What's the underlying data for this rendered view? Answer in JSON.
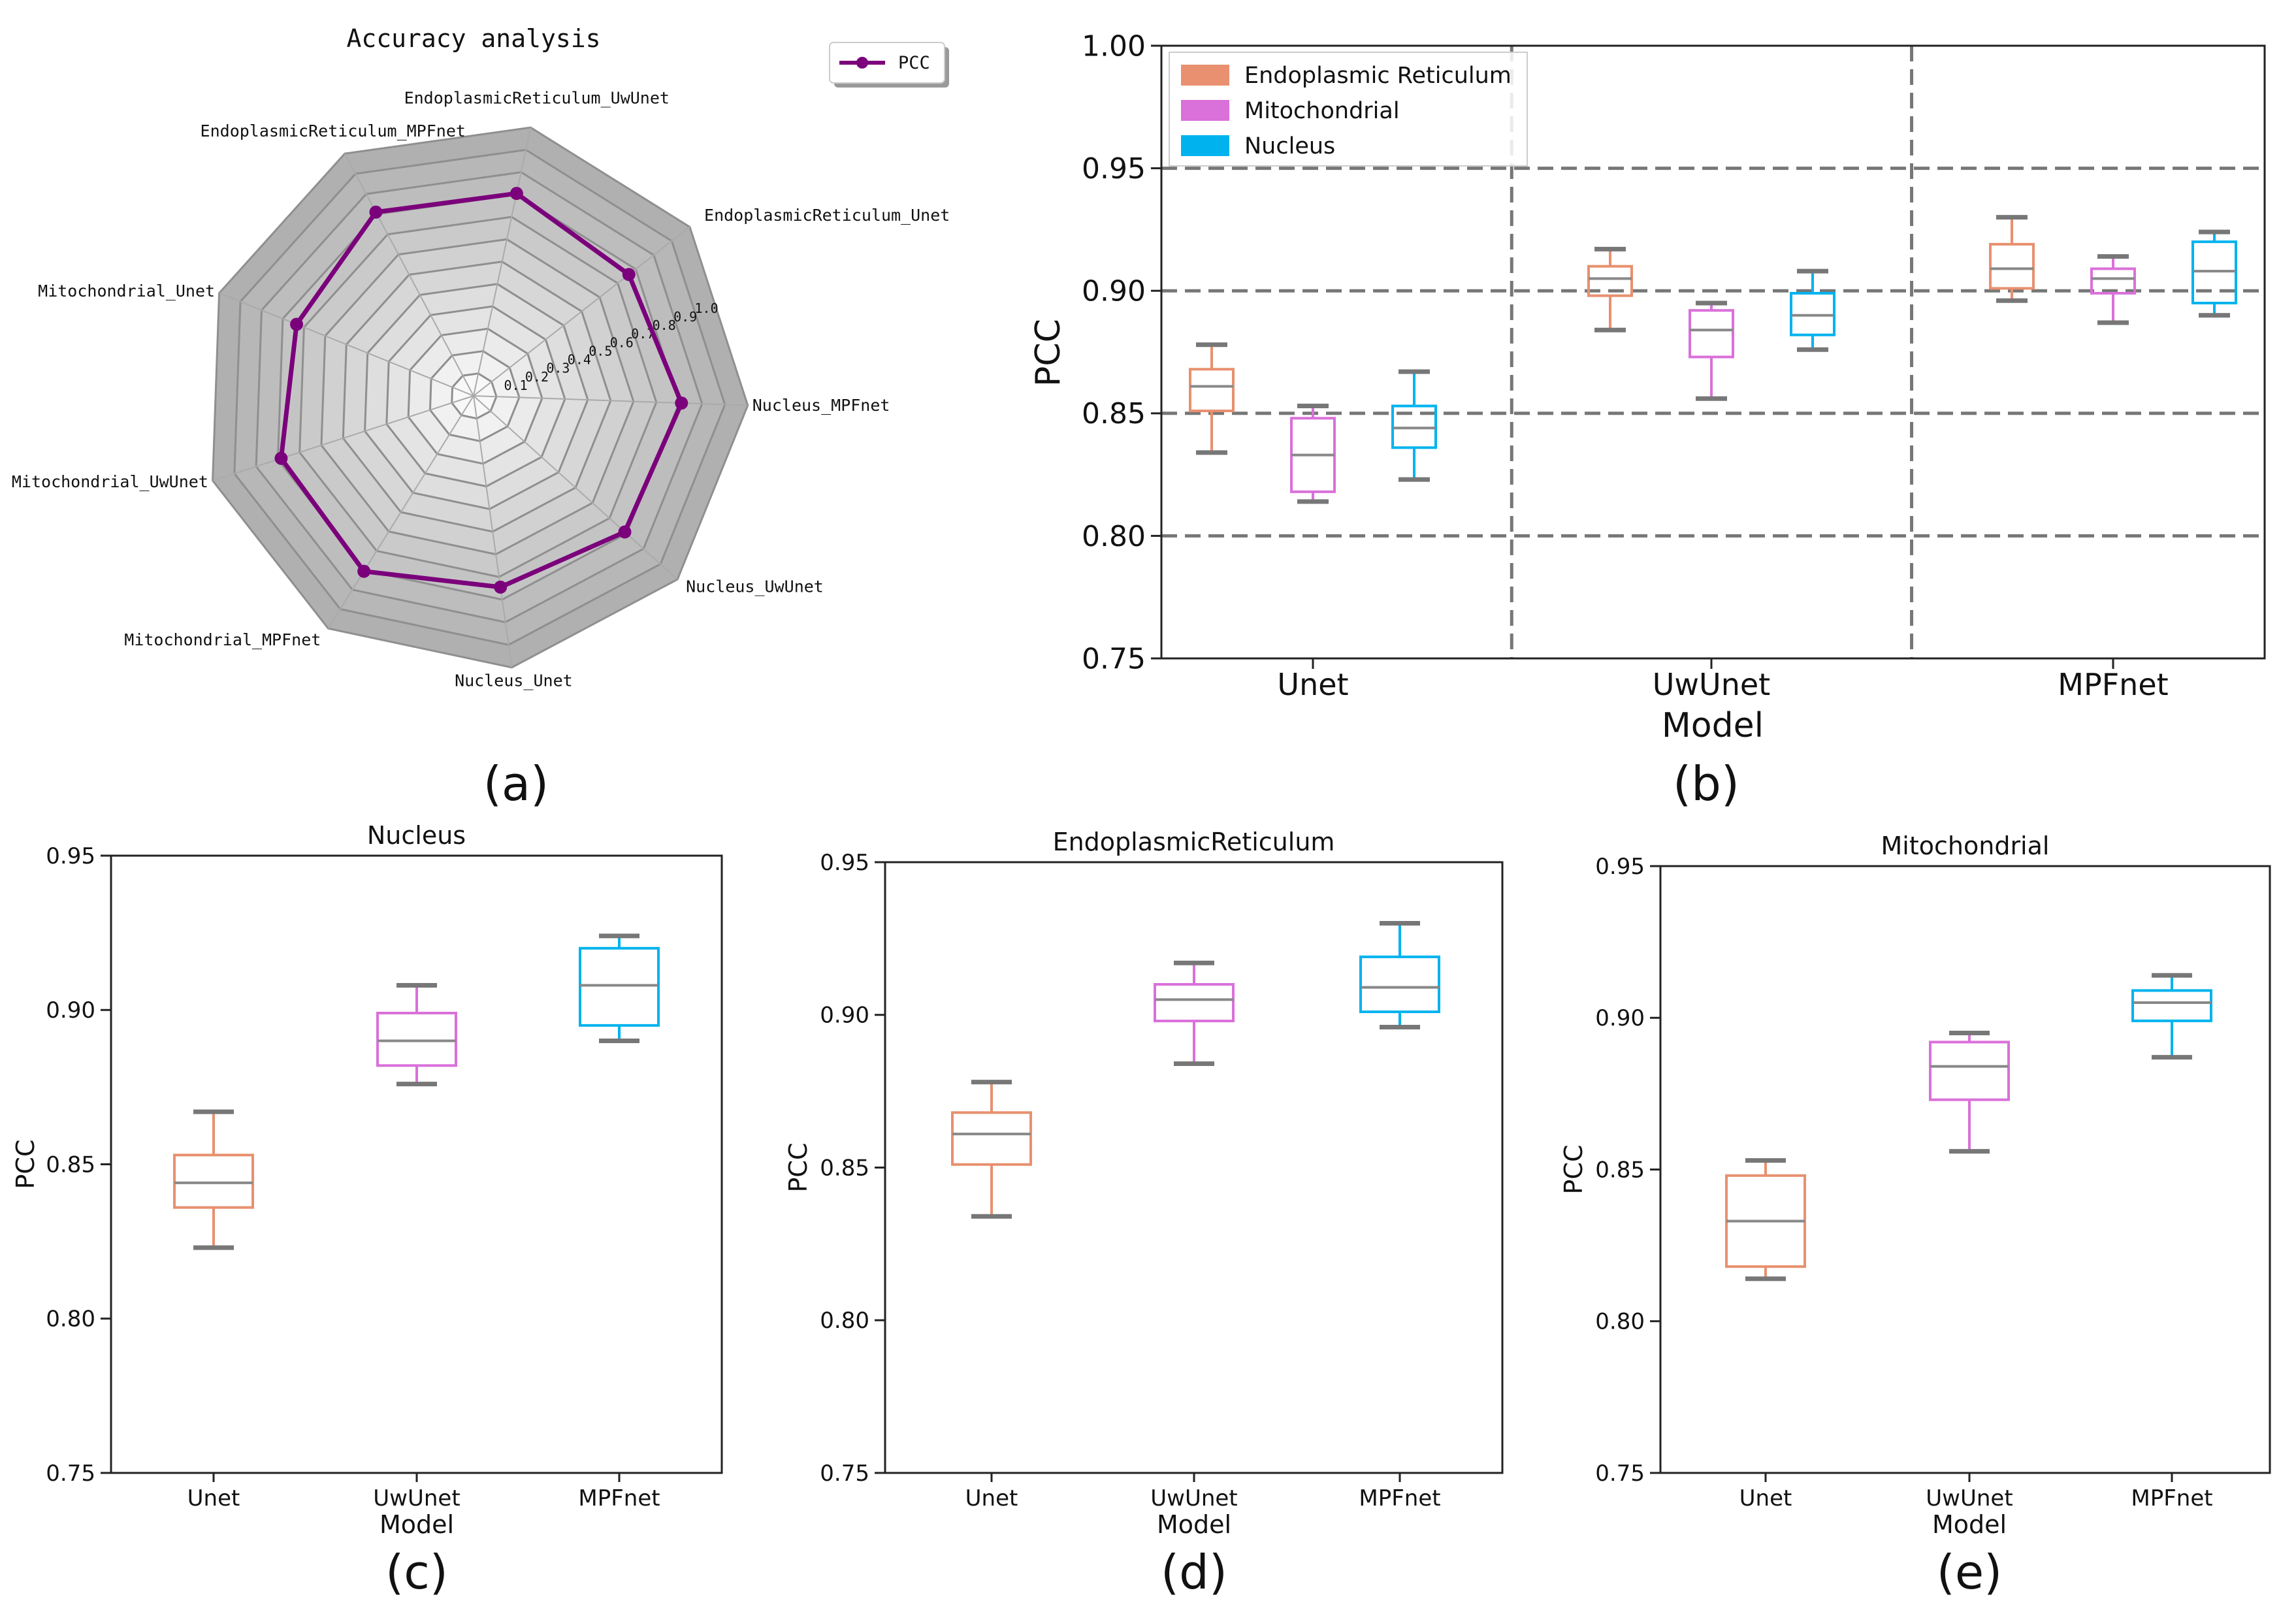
{
  "colors": {
    "er": "#E8906F",
    "mito": "#DA70DA",
    "nuc": "#00B3EE",
    "radar_line": "#7B007B",
    "median": "#888888",
    "cap": "#777777",
    "grid": "#777777"
  },
  "chart_data": [
    {
      "panel": "(a)",
      "type": "radar",
      "title": "Accuracy analysis",
      "legend": [
        "PCC"
      ],
      "legend_position": "top-right",
      "axes": [
        "EndoplasmicReticulum_UwUnet",
        "EndoplasmicReticulum_Unet",
        "Nucleus_MPFnet",
        "Nucleus_UwUnet",
        "Nucleus_Unet",
        "Mitochondrial_MPFnet",
        "Mitochondrial_UwUnet",
        "Mitochondrial_Unet",
        "EndoplasmicReticulum_MPFnet"
      ],
      "values": [
        0.905,
        0.862,
        0.91,
        0.89,
        0.845,
        0.905,
        0.885,
        0.835,
        0.91
      ],
      "rlim": [
        0,
        1.2
      ],
      "radial_ticks": [
        "0.1",
        "0.2",
        "0.3",
        "0.4",
        "0.5",
        "0.6",
        "0.7",
        "0.8",
        "0.9",
        "1.0"
      ]
    },
    {
      "panel": "(b)",
      "type": "box",
      "title": "",
      "xlabel": "Model",
      "ylabel": "PCC",
      "ylim": [
        0.75,
        1.0
      ],
      "yticks": [
        "0.75",
        "0.80",
        "0.85",
        "0.90",
        "0.95",
        "1.00"
      ],
      "categories": [
        "Unet",
        "UwUnet",
        "MPFnet"
      ],
      "legend_position": "top-left",
      "grid": true,
      "series": [
        {
          "name": "Endoplasmic Reticulum",
          "color_key": "er",
          "boxes": [
            {
              "min": 0.834,
              "q1": 0.851,
              "median": 0.861,
              "q3": 0.868,
              "max": 0.878
            },
            {
              "min": 0.884,
              "q1": 0.898,
              "median": 0.905,
              "q3": 0.91,
              "max": 0.917
            },
            {
              "min": 0.896,
              "q1": 0.901,
              "median": 0.909,
              "q3": 0.919,
              "max": 0.93
            }
          ]
        },
        {
          "name": "Mitochondrial",
          "color_key": "mito",
          "boxes": [
            {
              "min": 0.814,
              "q1": 0.818,
              "median": 0.833,
              "q3": 0.848,
              "max": 0.853
            },
            {
              "min": 0.856,
              "q1": 0.873,
              "median": 0.884,
              "q3": 0.892,
              "max": 0.895
            },
            {
              "min": 0.887,
              "q1": 0.899,
              "median": 0.905,
              "q3": 0.909,
              "max": 0.914
            }
          ]
        },
        {
          "name": "Nucleus",
          "color_key": "nuc",
          "boxes": [
            {
              "min": 0.823,
              "q1": 0.836,
              "median": 0.844,
              "q3": 0.853,
              "max": 0.867
            },
            {
              "min": 0.876,
              "q1": 0.882,
              "median": 0.89,
              "q3": 0.899,
              "max": 0.908
            },
            {
              "min": 0.89,
              "q1": 0.895,
              "median": 0.908,
              "q3": 0.92,
              "max": 0.924
            }
          ]
        }
      ]
    },
    {
      "panel": "(c)",
      "type": "box",
      "title": "Nucleus",
      "xlabel": "Model",
      "ylabel": "PCC",
      "ylim": [
        0.75,
        0.95
      ],
      "yticks": [
        "0.75",
        "0.80",
        "0.85",
        "0.90",
        "0.95"
      ],
      "categories": [
        "Unet",
        "UwUnet",
        "MPFnet"
      ],
      "box_colors": [
        "er",
        "mito",
        "nuc"
      ],
      "boxes": [
        {
          "min": 0.823,
          "q1": 0.836,
          "median": 0.844,
          "q3": 0.853,
          "max": 0.867
        },
        {
          "min": 0.876,
          "q1": 0.882,
          "median": 0.89,
          "q3": 0.899,
          "max": 0.908
        },
        {
          "min": 0.89,
          "q1": 0.895,
          "median": 0.908,
          "q3": 0.92,
          "max": 0.924
        }
      ]
    },
    {
      "panel": "(d)",
      "type": "box",
      "title": "EndoplasmicReticulum",
      "xlabel": "Model",
      "ylabel": "PCC",
      "ylim": [
        0.75,
        0.95
      ],
      "yticks": [
        "0.75",
        "0.80",
        "0.85",
        "0.90",
        "0.95"
      ],
      "categories": [
        "Unet",
        "UwUnet",
        "MPFnet"
      ],
      "box_colors": [
        "er",
        "mito",
        "nuc"
      ],
      "boxes": [
        {
          "min": 0.834,
          "q1": 0.851,
          "median": 0.861,
          "q3": 0.868,
          "max": 0.878
        },
        {
          "min": 0.884,
          "q1": 0.898,
          "median": 0.905,
          "q3": 0.91,
          "max": 0.917
        },
        {
          "min": 0.896,
          "q1": 0.901,
          "median": 0.909,
          "q3": 0.919,
          "max": 0.93
        }
      ]
    },
    {
      "panel": "(e)",
      "type": "box",
      "title": "Mitochondrial",
      "xlabel": "Model",
      "ylabel": "PCC",
      "ylim": [
        0.75,
        0.95
      ],
      "yticks": [
        "0.75",
        "0.80",
        "0.85",
        "0.90",
        "0.95"
      ],
      "categories": [
        "Unet",
        "UwUnet",
        "MPFnet"
      ],
      "box_colors": [
        "er",
        "mito",
        "nuc"
      ],
      "boxes": [
        {
          "min": 0.814,
          "q1": 0.818,
          "median": 0.833,
          "q3": 0.848,
          "max": 0.853
        },
        {
          "min": 0.856,
          "q1": 0.873,
          "median": 0.884,
          "q3": 0.892,
          "max": 0.895
        },
        {
          "min": 0.887,
          "q1": 0.899,
          "median": 0.905,
          "q3": 0.909,
          "max": 0.914
        }
      ]
    }
  ]
}
